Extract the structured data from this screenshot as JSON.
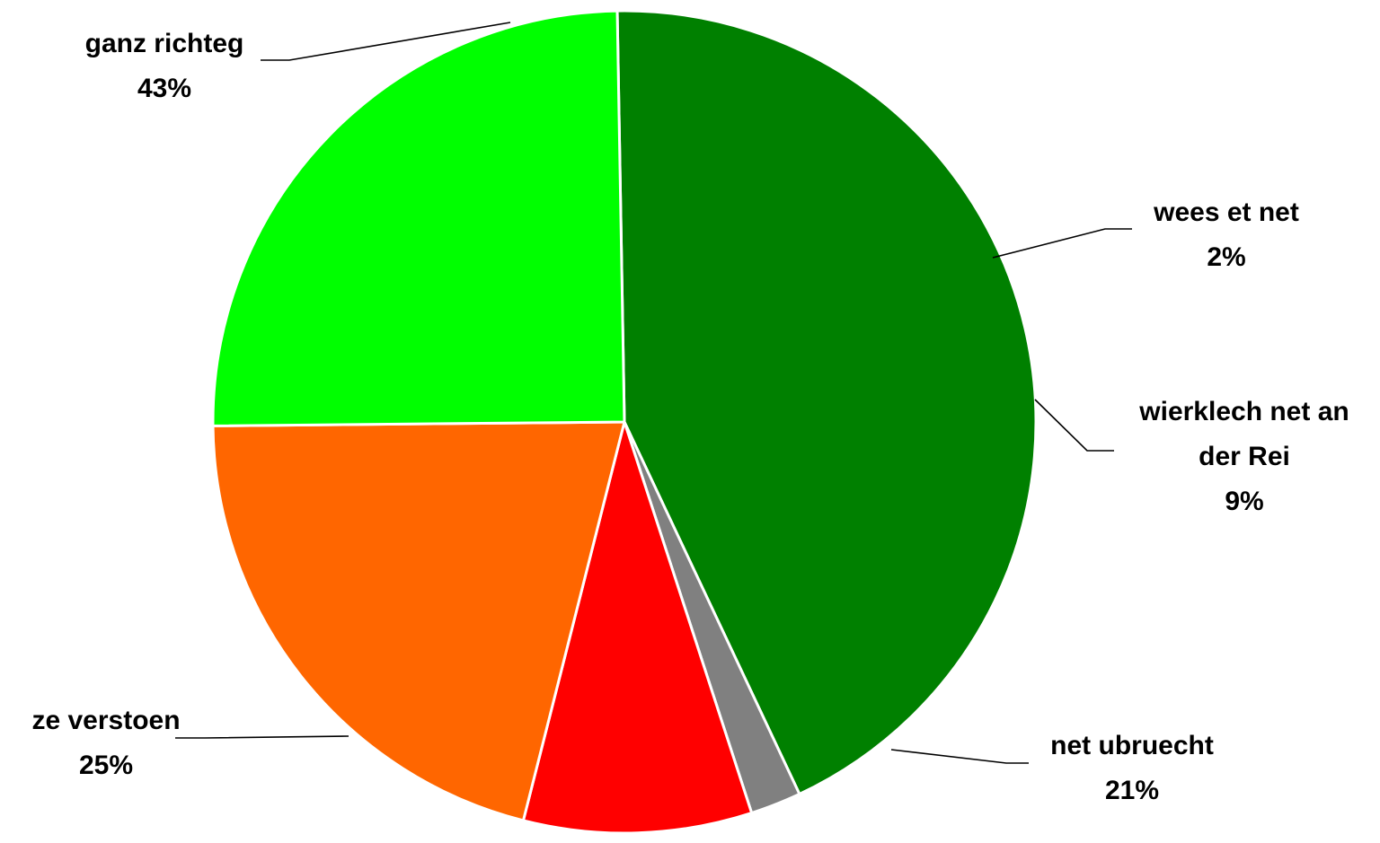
{
  "chart_data": {
    "type": "pie",
    "title": "",
    "start_angle_deg": -91,
    "slices": [
      {
        "label": [
          "ganz richteg"
        ],
        "percent_label": "43%",
        "value": 43.5,
        "color": "#008000"
      },
      {
        "label": [
          "wees et net"
        ],
        "percent_label": "2%",
        "value": 2,
        "color": "#808080"
      },
      {
        "label": [
          "wierklech net an",
          "der Rei"
        ],
        "percent_label": "9%",
        "value": 9,
        "color": "#ff0000"
      },
      {
        "label": [
          "net ubruecht"
        ],
        "percent_label": "21%",
        "value": 21,
        "color": "#ff6600"
      },
      {
        "label": [
          "ze verstoen"
        ],
        "percent_label": "25%",
        "value": 25,
        "color": "#00ff00"
      }
    ]
  }
}
